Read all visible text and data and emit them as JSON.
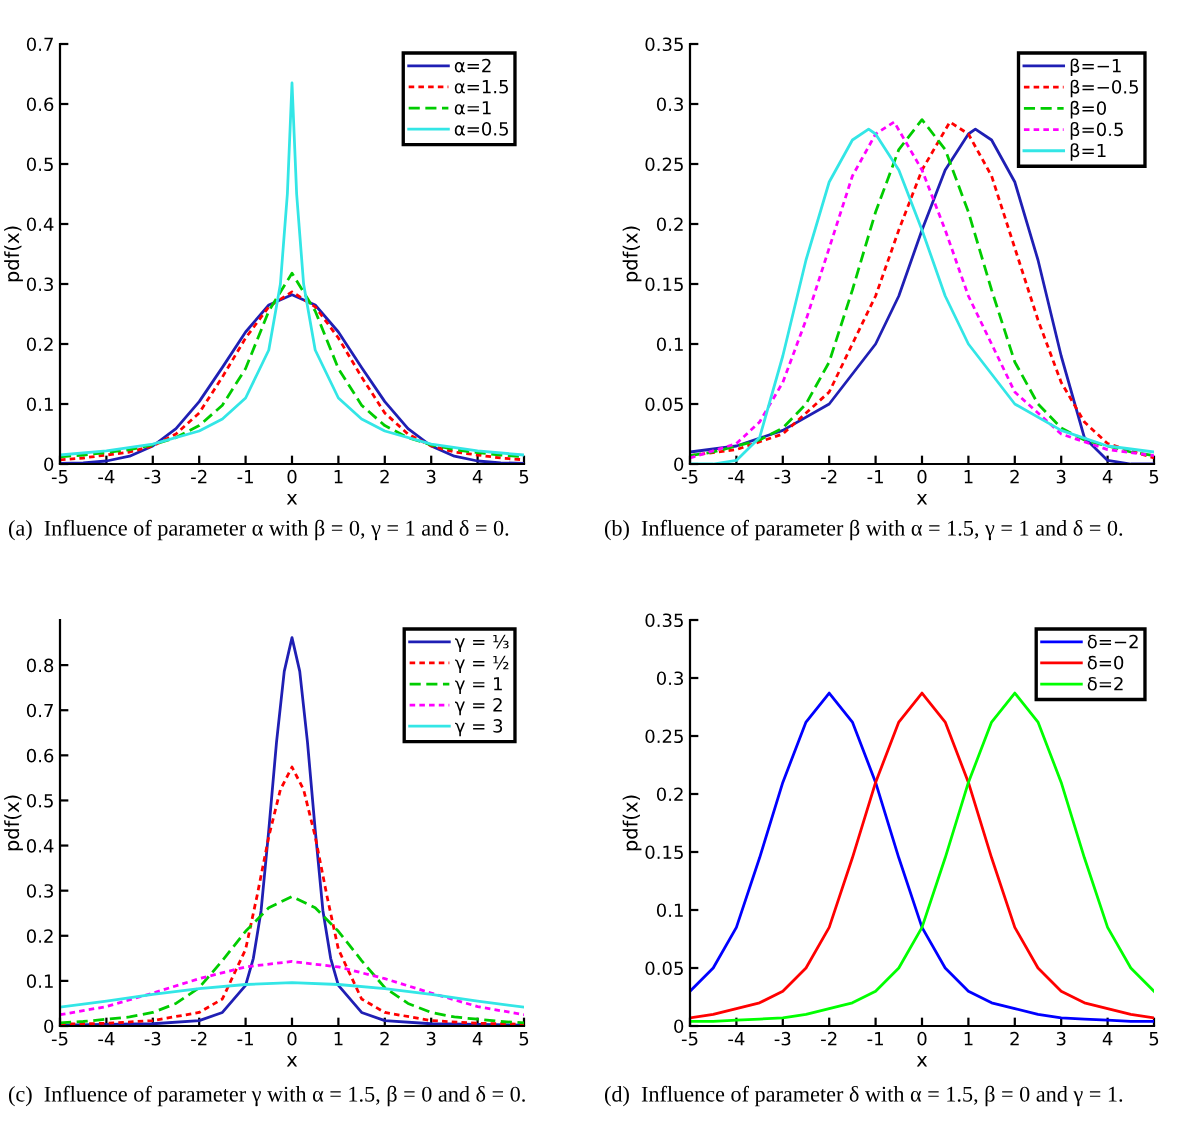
{
  "chart_data": [
    {
      "type": "line",
      "xlabel": "x",
      "ylabel": "pdf(x)",
      "xlim": [
        -5,
        5
      ],
      "ylim": [
        0,
        0.7
      ],
      "xticks": [
        -5,
        -4,
        -3,
        -2,
        -1,
        0,
        1,
        2,
        3,
        4,
        5
      ],
      "yticks": [
        0,
        0.1,
        0.2,
        0.3,
        0.4,
        0.5,
        0.6,
        0.7
      ],
      "legend": "top right",
      "annotations": [
        "(a)  Influence of parameter α with β = 0, γ = 1 and δ = 0."
      ],
      "series": [
        {
          "name": "α=2",
          "color": "#1f1fb4",
          "line_style": "solid",
          "x": [
            -5,
            -4.5,
            -4,
            -3.5,
            -3,
            -2.5,
            -2,
            -1.5,
            -1,
            -0.5,
            0,
            0.5,
            1,
            1.5,
            2,
            2.5,
            3,
            3.5,
            4,
            4.5,
            5
          ],
          "values": [
            0.001,
            0.002,
            0.005,
            0.013,
            0.03,
            0.059,
            0.104,
            0.161,
            0.22,
            0.265,
            0.282,
            0.265,
            0.22,
            0.161,
            0.104,
            0.059,
            0.03,
            0.013,
            0.005,
            0.002,
            0.001
          ]
        },
        {
          "name": "α=1.5",
          "color": "#ff0000",
          "line_style": "dotted",
          "x": [
            -5,
            -4.5,
            -4,
            -3.5,
            -3,
            -2.5,
            -2,
            -1.5,
            -1,
            -0.5,
            0,
            0.5,
            1,
            1.5,
            2,
            2.5,
            3,
            3.5,
            4,
            4.5,
            5
          ],
          "values": [
            0.007,
            0.01,
            0.015,
            0.02,
            0.03,
            0.05,
            0.085,
            0.145,
            0.21,
            0.262,
            0.287,
            0.262,
            0.21,
            0.145,
            0.085,
            0.05,
            0.03,
            0.02,
            0.015,
            0.01,
            0.007
          ]
        },
        {
          "name": "α=1",
          "color": "#00cc00",
          "line_style": "dashed",
          "x": [
            -5,
            -4.5,
            -4,
            -3.5,
            -3,
            -2.5,
            -2,
            -1.5,
            -1,
            -0.5,
            0,
            0.5,
            1,
            1.5,
            2,
            2.5,
            3,
            3.5,
            4,
            4.5,
            5
          ],
          "values": [
            0.012,
            0.015,
            0.019,
            0.024,
            0.032,
            0.044,
            0.064,
            0.098,
            0.159,
            0.255,
            0.318,
            0.255,
            0.159,
            0.098,
            0.064,
            0.044,
            0.032,
            0.024,
            0.019,
            0.015,
            0.012
          ]
        },
        {
          "name": "α=0.5",
          "color": "#33e6e6",
          "line_style": "solid",
          "x": [
            -5,
            -4,
            -3,
            -2,
            -1.5,
            -1,
            -0.5,
            -0.25,
            -0.1,
            0,
            0.1,
            0.25,
            0.5,
            1,
            1.5,
            2,
            3,
            4,
            5
          ],
          "values": [
            0.015,
            0.022,
            0.033,
            0.055,
            0.075,
            0.11,
            0.19,
            0.3,
            0.45,
            0.635,
            0.45,
            0.3,
            0.19,
            0.11,
            0.075,
            0.055,
            0.033,
            0.022,
            0.015
          ]
        }
      ]
    },
    {
      "type": "line",
      "xlabel": "x",
      "ylabel": "pdf(x)",
      "xlim": [
        -5,
        5
      ],
      "ylim": [
        0,
        0.35
      ],
      "xticks": [
        -5,
        -4,
        -3,
        -2,
        -1,
        0,
        1,
        2,
        3,
        4,
        5
      ],
      "yticks": [
        0,
        0.05,
        0.1,
        0.15,
        0.2,
        0.25,
        0.3,
        0.35
      ],
      "legend": "top right",
      "annotations": [
        "(b)  Influence of parameter β with α = 1.5, γ = 1 and δ = 0."
      ],
      "series": [
        {
          "name": "β=−1",
          "color": "#1f1fb4",
          "line_style": "solid",
          "x": [
            -5,
            -4,
            -3,
            -2,
            -1,
            -0.5,
            0,
            0.5,
            1,
            1.15,
            1.5,
            2,
            2.5,
            3,
            3.5,
            4,
            4.5,
            5
          ],
          "values": [
            0.01,
            0.015,
            0.028,
            0.05,
            0.1,
            0.14,
            0.195,
            0.245,
            0.275,
            0.279,
            0.27,
            0.235,
            0.17,
            0.09,
            0.022,
            0.003,
            0.0,
            0.0
          ]
        },
        {
          "name": "β=−0.5",
          "color": "#ff0000",
          "line_style": "dotted",
          "x": [
            -5,
            -4,
            -3,
            -2,
            -1,
            -0.5,
            0,
            0.6,
            1,
            1.5,
            2,
            2.5,
            3,
            3.5,
            4,
            5
          ],
          "values": [
            0.007,
            0.012,
            0.025,
            0.06,
            0.14,
            0.195,
            0.245,
            0.285,
            0.275,
            0.24,
            0.18,
            0.12,
            0.068,
            0.035,
            0.017,
            0.005
          ]
        },
        {
          "name": "β=0",
          "color": "#00cc00",
          "line_style": "dashed",
          "x": [
            -5,
            -4.5,
            -4,
            -3.5,
            -3,
            -2.5,
            -2,
            -1.5,
            -1,
            -0.5,
            0,
            0.5,
            1,
            1.5,
            2,
            2.5,
            3,
            3.5,
            4,
            4.5,
            5
          ],
          "values": [
            0.007,
            0.01,
            0.015,
            0.02,
            0.03,
            0.05,
            0.085,
            0.145,
            0.21,
            0.262,
            0.287,
            0.262,
            0.21,
            0.145,
            0.085,
            0.05,
            0.03,
            0.02,
            0.015,
            0.01,
            0.007
          ]
        },
        {
          "name": "β=0.5",
          "color": "#ff00ff",
          "line_style": "dotted",
          "x": [
            -5,
            -4,
            -3.5,
            -3,
            -2.5,
            -2,
            -1.5,
            -1,
            -0.6,
            0,
            0.5,
            1,
            2,
            3,
            4,
            5
          ],
          "values": [
            0.005,
            0.017,
            0.035,
            0.068,
            0.12,
            0.18,
            0.24,
            0.275,
            0.285,
            0.245,
            0.195,
            0.14,
            0.06,
            0.025,
            0.012,
            0.007
          ]
        },
        {
          "name": "β=1",
          "color": "#33e6e6",
          "line_style": "solid",
          "x": [
            -5,
            -4.5,
            -4,
            -3.5,
            -3,
            -2.5,
            -2,
            -1.5,
            -1.15,
            -1,
            -0.5,
            0,
            0.5,
            1,
            2,
            3,
            4,
            5
          ],
          "values": [
            0.0,
            0.0,
            0.003,
            0.022,
            0.09,
            0.17,
            0.235,
            0.27,
            0.279,
            0.275,
            0.245,
            0.195,
            0.14,
            0.1,
            0.05,
            0.028,
            0.015,
            0.01
          ]
        }
      ]
    },
    {
      "type": "line",
      "xlabel": "x",
      "ylabel": "pdf(x)",
      "xlim": [
        -5,
        5
      ],
      "ylim": [
        0,
        0.9
      ],
      "xticks": [
        -5,
        -4,
        -3,
        -2,
        -1,
        0,
        1,
        2,
        3,
        4,
        5
      ],
      "yticks": [
        0,
        0.1,
        0.2,
        0.3,
        0.4,
        0.5,
        0.6,
        0.7,
        0.8
      ],
      "legend": "top right",
      "annotations": [
        "(c)  Influence of parameter γ with α = 1.5, β = 0 and δ = 0."
      ],
      "series": [
        {
          "name": "γ = ⅓",
          "color": "#1f1fb4",
          "line_style": "solid",
          "x": [
            -5,
            -3,
            -2,
            -1.5,
            -1,
            -0.833,
            -0.667,
            -0.5,
            -0.333,
            -0.167,
            0,
            0.167,
            0.333,
            0.5,
            0.667,
            0.833,
            1,
            1.5,
            2,
            3,
            5
          ],
          "values": [
            0.002,
            0.005,
            0.012,
            0.03,
            0.09,
            0.15,
            0.255,
            0.435,
            0.63,
            0.786,
            0.861,
            0.786,
            0.63,
            0.435,
            0.255,
            0.15,
            0.09,
            0.03,
            0.012,
            0.005,
            0.002
          ]
        },
        {
          "name": "γ = ½",
          "color": "#ff0000",
          "line_style": "dotted",
          "x": [
            -5,
            -4,
            -3,
            -2,
            -1.5,
            -1,
            -0.75,
            -0.5,
            -0.25,
            0,
            0.25,
            0.5,
            0.75,
            1,
            1.5,
            2,
            3,
            4,
            5
          ],
          "values": [
            0.004,
            0.006,
            0.012,
            0.03,
            0.06,
            0.17,
            0.29,
            0.42,
            0.524,
            0.574,
            0.524,
            0.42,
            0.29,
            0.17,
            0.06,
            0.03,
            0.012,
            0.006,
            0.004
          ]
        },
        {
          "name": "γ = 1",
          "color": "#00cc00",
          "line_style": "dashed",
          "x": [
            -5,
            -4.5,
            -4,
            -3.5,
            -3,
            -2.5,
            -2,
            -1.5,
            -1,
            -0.5,
            0,
            0.5,
            1,
            1.5,
            2,
            2.5,
            3,
            3.5,
            4,
            4.5,
            5
          ],
          "values": [
            0.007,
            0.01,
            0.015,
            0.02,
            0.03,
            0.05,
            0.085,
            0.145,
            0.21,
            0.262,
            0.287,
            0.262,
            0.21,
            0.145,
            0.085,
            0.05,
            0.03,
            0.02,
            0.015,
            0.01,
            0.007
          ]
        },
        {
          "name": "γ = 2",
          "color": "#ff00ff",
          "line_style": "dotted",
          "x": [
            -5,
            -4,
            -3,
            -2,
            -1,
            0,
            1,
            2,
            3,
            4,
            5
          ],
          "values": [
            0.025,
            0.043,
            0.073,
            0.105,
            0.131,
            0.143,
            0.131,
            0.105,
            0.073,
            0.043,
            0.025
          ]
        },
        {
          "name": "γ = 3",
          "color": "#33e6e6",
          "line_style": "solid",
          "x": [
            -5,
            -4,
            -3,
            -2,
            -1,
            0,
            1,
            2,
            3,
            4,
            5
          ],
          "values": [
            0.042,
            0.055,
            0.07,
            0.083,
            0.092,
            0.096,
            0.092,
            0.083,
            0.07,
            0.055,
            0.042
          ]
        }
      ]
    },
    {
      "type": "line",
      "xlabel": "x",
      "ylabel": "pdf(x)",
      "xlim": [
        -5,
        5
      ],
      "ylim": [
        0,
        0.35
      ],
      "xticks": [
        -5,
        -4,
        -3,
        -2,
        -1,
        0,
        1,
        2,
        3,
        4,
        5
      ],
      "yticks": [
        0,
        0.05,
        0.1,
        0.15,
        0.2,
        0.25,
        0.3,
        0.35
      ],
      "legend": "top right",
      "annotations": [
        "(d)  Influence of parameter δ with α = 1.5, β = 0 and γ = 1."
      ],
      "series": [
        {
          "name": "δ=−2",
          "color": "#0000ff",
          "line_style": "solid",
          "x": [
            -5,
            -4.5,
            -4,
            -3.5,
            -3,
            -2.5,
            -2,
            -1.5,
            -1,
            -0.5,
            0,
            0.5,
            1,
            1.5,
            2,
            2.5,
            3,
            3.5,
            4,
            4.5,
            5
          ],
          "values": [
            0.03,
            0.05,
            0.085,
            0.145,
            0.21,
            0.262,
            0.287,
            0.262,
            0.21,
            0.145,
            0.085,
            0.05,
            0.03,
            0.02,
            0.015,
            0.01,
            0.007,
            0.006,
            0.005,
            0.004,
            0.004
          ]
        },
        {
          "name": "δ=0",
          "color": "#ff0000",
          "line_style": "solid",
          "x": [
            -5,
            -4.5,
            -4,
            -3.5,
            -3,
            -2.5,
            -2,
            -1.5,
            -1,
            -0.5,
            0,
            0.5,
            1,
            1.5,
            2,
            2.5,
            3,
            3.5,
            4,
            4.5,
            5
          ],
          "values": [
            0.007,
            0.01,
            0.015,
            0.02,
            0.03,
            0.05,
            0.085,
            0.145,
            0.21,
            0.262,
            0.287,
            0.262,
            0.21,
            0.145,
            0.085,
            0.05,
            0.03,
            0.02,
            0.015,
            0.01,
            0.007
          ]
        },
        {
          "name": "δ=2",
          "color": "#00ff00",
          "line_style": "solid",
          "x": [
            -5,
            -4.5,
            -4,
            -3.5,
            -3,
            -2.5,
            -2,
            -1.5,
            -1,
            -0.5,
            0,
            0.5,
            1,
            1.5,
            2,
            2.5,
            3,
            3.5,
            4,
            4.5,
            5
          ],
          "values": [
            0.004,
            0.004,
            0.005,
            0.006,
            0.007,
            0.01,
            0.015,
            0.02,
            0.03,
            0.05,
            0.085,
            0.145,
            0.21,
            0.262,
            0.287,
            0.262,
            0.21,
            0.145,
            0.085,
            0.05,
            0.03
          ]
        }
      ]
    }
  ]
}
